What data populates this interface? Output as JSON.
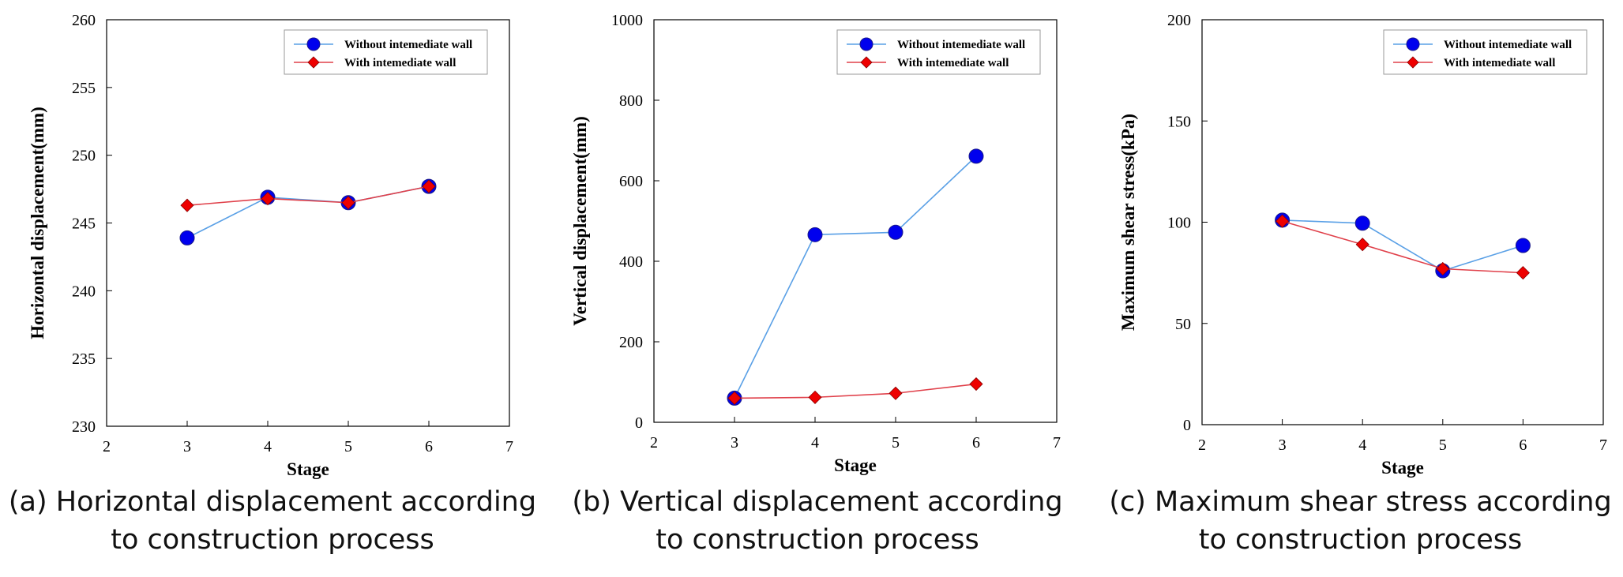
{
  "colors": {
    "without": "#0000EE",
    "without_line": "#5AA0E6",
    "with": "#EE0000",
    "with_line": "#E0404A"
  },
  "chart_data": [
    {
      "type": "line",
      "xlabel": "Stage",
      "ylabel": "Horizontal displacement(mm)",
      "xlim": [
        2,
        7
      ],
      "ylim": [
        230,
        260
      ],
      "xticks": [
        "2",
        "3",
        "4",
        "5",
        "6",
        "7"
      ],
      "yticks": [
        "230",
        "235",
        "240",
        "245",
        "250",
        "255",
        "260"
      ],
      "x": [
        3,
        4,
        5,
        6
      ],
      "series": [
        {
          "name": "Without intemediate wall",
          "marker": "circle",
          "values": [
            243.9,
            246.9,
            246.5,
            247.7
          ]
        },
        {
          "name": "With intemediate wall",
          "marker": "diamond",
          "values": [
            246.3,
            246.8,
            246.5,
            247.7
          ]
        }
      ],
      "legend": "top-right",
      "caption": "(a) Horizontal displacement according to construction process"
    },
    {
      "type": "line",
      "xlabel": "Stage",
      "ylabel": "Vertical displacement(mm)",
      "xlim": [
        2,
        7
      ],
      "ylim": [
        0,
        1000
      ],
      "xticks": [
        "2",
        "3",
        "4",
        "5",
        "6",
        "7"
      ],
      "yticks": [
        "0",
        "200",
        "400",
        "600",
        "800",
        "1000"
      ],
      "x": [
        3,
        4,
        5,
        6
      ],
      "series": [
        {
          "name": "Without intemediate wall",
          "marker": "circle",
          "values": [
            60,
            466,
            472,
            661
          ]
        },
        {
          "name": "With intemediate wall",
          "marker": "diamond",
          "values": [
            60,
            62,
            72,
            95
          ]
        }
      ],
      "legend": "top-right",
      "caption": "(b) Vertical displacement according to construction process"
    },
    {
      "type": "line",
      "xlabel": "Stage",
      "ylabel": "Maximum shear stress(kPa)",
      "xlim": [
        2,
        7
      ],
      "ylim": [
        0,
        200
      ],
      "xticks": [
        "2",
        "3",
        "4",
        "5",
        "6",
        "7"
      ],
      "yticks": [
        "0",
        "50",
        "100",
        "150",
        "200"
      ],
      "x": [
        3,
        4,
        5,
        6
      ],
      "series": [
        {
          "name": "Without intemediate wall",
          "marker": "circle",
          "values": [
            101,
            99.5,
            76,
            88.5
          ]
        },
        {
          "name": "With intemediate wall",
          "marker": "diamond",
          "values": [
            100.5,
            89,
            77,
            75
          ]
        }
      ],
      "legend": "top-right",
      "caption": "(c) Maximum shear stress according to construction process"
    }
  ]
}
